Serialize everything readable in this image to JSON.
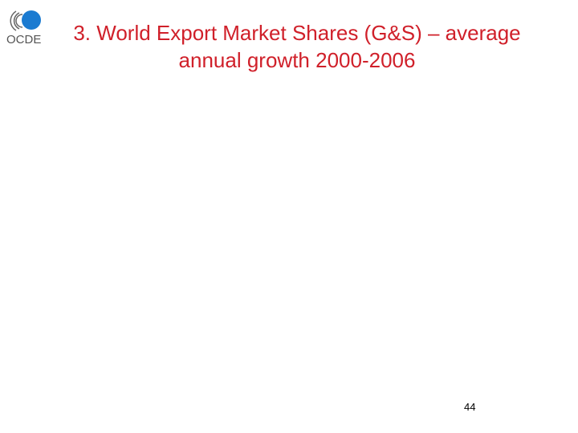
{
  "logo": {
    "name": "oecd-ocde-logo",
    "text": "OCDE",
    "circle_color": "#1b7bd1",
    "text_color": "#555555"
  },
  "slide": {
    "title_line1": "3. World Export Market Shares (G&S) – average",
    "title_line2": "annual growth 2000-2006",
    "title_color": "#d0202a",
    "page_number": "44"
  }
}
